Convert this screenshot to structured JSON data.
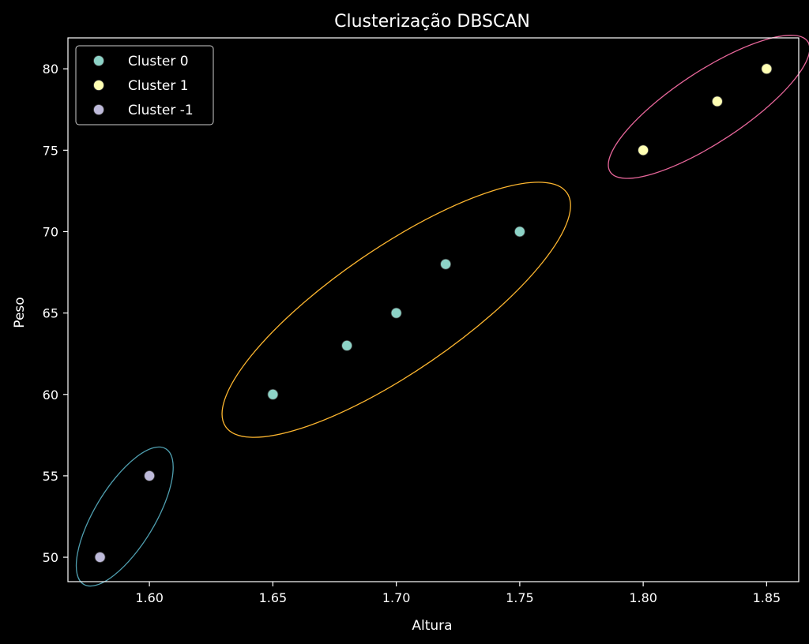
{
  "chart_data": {
    "type": "scatter",
    "title": "Clusterização DBSCAN",
    "xlabel": "Altura",
    "ylabel": "Peso",
    "xlim": [
      1.567,
      1.863
    ],
    "ylim": [
      48.5,
      81.9
    ],
    "xticks": [
      1.6,
      1.65,
      1.7,
      1.75,
      1.8,
      1.85
    ],
    "xtick_labels": [
      "1.60",
      "1.65",
      "1.70",
      "1.75",
      "1.80",
      "1.85"
    ],
    "yticks": [
      50,
      55,
      60,
      65,
      70,
      75,
      80
    ],
    "ytick_labels": [
      "50",
      "55",
      "60",
      "65",
      "70",
      "75",
      "80"
    ],
    "grid": false,
    "legend_position": "top-left",
    "background": "#000000",
    "series": [
      {
        "name": "Cluster 0",
        "color": "#8dd3c7",
        "points": [
          [
            1.65,
            60
          ],
          [
            1.68,
            63
          ],
          [
            1.7,
            65
          ],
          [
            1.72,
            68
          ],
          [
            1.75,
            70
          ]
        ]
      },
      {
        "name": "Cluster 1",
        "color": "#ffffb3",
        "points": [
          [
            1.8,
            75
          ],
          [
            1.83,
            78
          ],
          [
            1.85,
            80
          ]
        ]
      },
      {
        "name": "Cluster -1",
        "color": "#bebada",
        "points": [
          [
            1.58,
            50
          ],
          [
            1.6,
            55
          ]
        ]
      }
    ],
    "cluster_outlines": [
      {
        "cluster": "Cluster 0",
        "color": "#fdb62f"
      },
      {
        "cluster": "Cluster 1",
        "color": "#e7669a"
      },
      {
        "cluster": "Cluster -1",
        "color": "#4f9fb0"
      }
    ]
  }
}
